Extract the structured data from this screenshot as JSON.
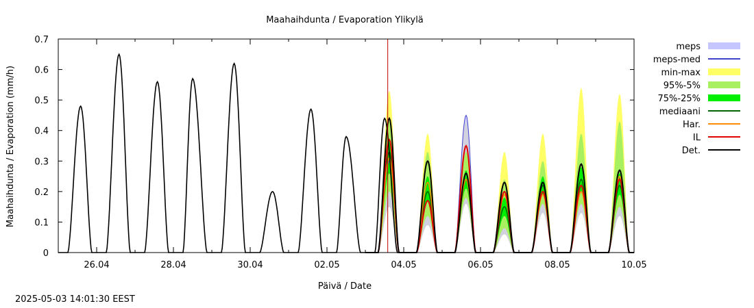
{
  "timestamp": "2025-05-03 14:01:30 EEST",
  "chart_data": {
    "type": "area",
    "title": "Maahaihdunta / Evaporation  Ylikylä",
    "xlabel": "Päivä / Date",
    "ylabel": "Maahaihdunta / Evaporation (mm/h)",
    "xlim": [
      "2025-04-25 00:00",
      "2025-05-10 00:00"
    ],
    "ylim": [
      0,
      0.7
    ],
    "x_ticks": [
      "26.04",
      "28.04",
      "30.04",
      "02.05",
      "04.05",
      "06.05",
      "08.05",
      "10.05"
    ],
    "y_ticks": [
      "0",
      "0.1",
      "0.2",
      "0.3",
      "0.4",
      "0.5",
      "0.6",
      "0.7"
    ],
    "grid": false,
    "legend_position": "right",
    "now_marker": "2025-05-03 14:00",
    "legend": [
      {
        "label": "meps",
        "color": "#c6c6ff",
        "kind": "band"
      },
      {
        "label": "meps-med",
        "color": "#4040c8",
        "kind": "line"
      },
      {
        "label": "min-max",
        "color": "#ffff66",
        "kind": "band"
      },
      {
        "label": "95%-5%",
        "color": "#a8f060",
        "kind": "band"
      },
      {
        "label": "75%-25%",
        "color": "#00ee00",
        "kind": "band"
      },
      {
        "label": "mediaani",
        "color": "#006400",
        "kind": "line"
      },
      {
        "label": "Har.",
        "color": "#ff8c00",
        "kind": "line"
      },
      {
        "label": "IL",
        "color": "#e00000",
        "kind": "line"
      },
      {
        "label": "Det.",
        "color": "#000000",
        "kind": "line"
      }
    ],
    "observed": {
      "name": "Det.",
      "peaks": [
        {
          "date": "2025-04-25",
          "start_hour": 6,
          "end_hour": 21,
          "peak_hour": 14,
          "value": 0.48
        },
        {
          "date": "2025-04-26",
          "start_hour": 6,
          "end_hour": 21,
          "peak_hour": 14,
          "value": 0.65
        },
        {
          "date": "2025-04-27",
          "start_hour": 6,
          "end_hour": 21,
          "peak_hour": 14,
          "value": 0.56
        },
        {
          "date": "2025-04-28",
          "start_hour": 6,
          "end_hour": 21,
          "peak_hour": 12,
          "value": 0.57
        },
        {
          "date": "2025-04-29",
          "start_hour": 6,
          "end_hour": 21,
          "peak_hour": 14,
          "value": 0.62
        },
        {
          "date": "2025-04-30",
          "start_hour": 6,
          "end_hour": 21,
          "peak_hour": 14,
          "value": 0.2
        },
        {
          "date": "2025-05-01",
          "start_hour": 6,
          "end_hour": 21,
          "peak_hour": 14,
          "value": 0.47
        },
        {
          "date": "2025-05-02",
          "start_hour": 6,
          "end_hour": 21,
          "peak_hour": 12,
          "value": 0.38
        },
        {
          "date": "2025-05-03",
          "start_hour": 6,
          "end_hour": 20,
          "peak_hour": 12,
          "value": 0.44
        }
      ]
    },
    "forecast": [
      {
        "date": "2025-05-03",
        "max": 0.53,
        "p95": 0.43,
        "p75": 0.37,
        "median": 0.33,
        "p25": 0.26,
        "p5": 0.2,
        "min": 0.15,
        "har": 0.31,
        "il": 0.37,
        "meps": 0.3,
        "det": 0.44
      },
      {
        "date": "2025-05-04",
        "max": 0.39,
        "p95": 0.33,
        "p75": 0.25,
        "median": 0.2,
        "p25": 0.17,
        "p5": 0.12,
        "min": 0.09,
        "har": 0.23,
        "il": 0.17,
        "meps": 0.2,
        "det": 0.3
      },
      {
        "date": "2025-05-05",
        "max": 0.43,
        "p95": 0.33,
        "p75": 0.27,
        "median": 0.24,
        "p25": 0.21,
        "p5": 0.18,
        "min": 0.16,
        "har": 0.24,
        "il": 0.35,
        "meps": 0.45,
        "det": 0.26
      },
      {
        "date": "2025-05-06",
        "max": 0.33,
        "p95": 0.24,
        "p75": 0.18,
        "median": 0.15,
        "p25": 0.12,
        "p5": 0.08,
        "min": 0.06,
        "har": 0.19,
        "il": 0.2,
        "meps": 0.15,
        "det": 0.23
      },
      {
        "date": "2025-05-07",
        "max": 0.39,
        "p95": 0.3,
        "p75": 0.25,
        "median": 0.22,
        "p25": 0.19,
        "p5": 0.16,
        "min": 0.13,
        "har": 0.19,
        "il": 0.2,
        "meps": 0.2,
        "det": 0.23
      },
      {
        "date": "2025-05-08",
        "max": 0.54,
        "p95": 0.39,
        "p75": 0.28,
        "median": 0.24,
        "p25": 0.2,
        "p5": 0.16,
        "min": 0.13,
        "har": 0.2,
        "il": 0.22,
        "meps": 0.2,
        "det": 0.29
      },
      {
        "date": "2025-05-09",
        "max": 0.52,
        "p95": 0.43,
        "p75": 0.26,
        "median": 0.22,
        "p25": 0.19,
        "p5": 0.15,
        "min": 0.12,
        "har": 0.25,
        "il": 0.24,
        "meps": 0.22,
        "det": 0.27
      }
    ]
  }
}
